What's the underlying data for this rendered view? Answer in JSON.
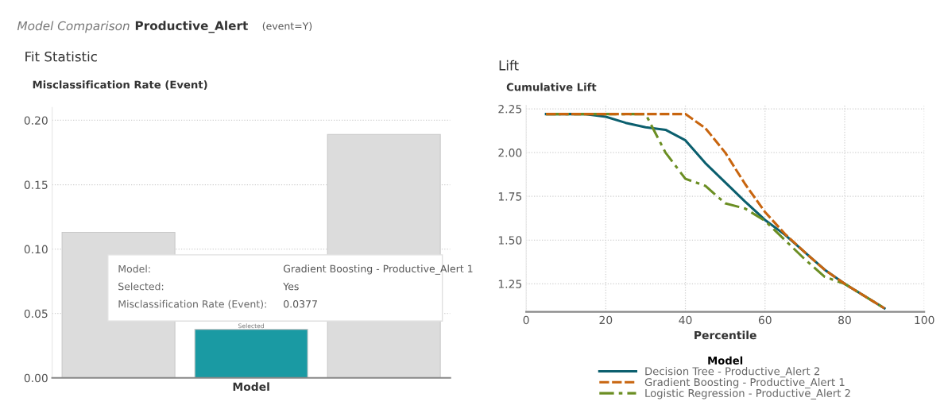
{
  "chart_data": [
    {
      "type": "bar",
      "title": "Fit Statistic",
      "xlabel": "Model",
      "ylabel": "Misclassification Rate (Event)",
      "categories": [
        null,
        null,
        null
      ],
      "values": [
        0.113,
        0.0377,
        0.189
      ],
      "colors": [
        "#dcdcdc",
        "#1a9aa3",
        "#dcdcdc"
      ],
      "ylim": [
        0,
        0.21
      ],
      "yticks": [
        {
          "value": 0,
          "label": "0.00"
        },
        {
          "value": 0.05,
          "label": "0.05"
        },
        {
          "value": 0.1,
          "label": "0.10"
        },
        {
          "value": 0.15,
          "label": "0.15"
        },
        {
          "value": 0.2,
          "label": "0.20"
        }
      ],
      "grid": "y",
      "tick_labels": "y",
      "annotations": [
        "Model Comparison",
        "Productive_Alert",
        "(event=Y)",
        "Model:",
        "Gradient Boosting - Productive_Alert 1",
        "Selected:",
        "Yes",
        "Misclassification Rate (Event):",
        "0.0377",
        "Selected"
      ]
    },
    {
      "type": "line",
      "title": "Lift",
      "xlabel": "Percentile",
      "ylabel": "Cumulative Lift",
      "legend_title": "Model",
      "legend": "bottom",
      "grid": true,
      "marker": "none",
      "x": [
        5,
        10,
        15,
        20,
        25,
        30,
        35,
        40,
        45,
        50,
        55,
        60,
        65,
        70,
        75,
        80,
        85,
        90
      ],
      "series": [
        {
          "name": "Decision Tree - Productive_Alert 2",
          "color": "#0b5f6e",
          "line_style": "solid",
          "values": [
            2.22,
            2.22,
            2.22,
            2.205,
            2.17,
            2.145,
            2.13,
            2.07,
            1.94,
            1.83,
            1.72,
            1.615,
            1.53,
            1.43,
            1.33,
            1.25,
            1.18,
            1.11
          ]
        },
        {
          "name": "Gradient Boosting - Productive_Alert 1",
          "color": "#c8650f",
          "line_style": "dashed",
          "values": [
            2.22,
            2.22,
            2.22,
            2.22,
            2.22,
            2.22,
            2.22,
            2.22,
            2.14,
            2.0,
            1.82,
            1.66,
            1.535,
            1.43,
            1.33,
            1.25,
            1.18,
            1.11
          ]
        },
        {
          "name": "Logistic Regression - Productive_Alert 2",
          "color": "#6b8e23",
          "line_style": "dashdot",
          "values": [
            2.22,
            2.22,
            2.22,
            2.22,
            2.22,
            2.22,
            2.0,
            1.85,
            1.81,
            1.71,
            1.68,
            1.61,
            1.5,
            1.39,
            1.29,
            1.25,
            1.18,
            1.11
          ]
        }
      ],
      "xlim": [
        0,
        100
      ],
      "xticks": [
        0,
        20,
        40,
        60,
        80,
        100
      ],
      "ylim": [
        1.09,
        2.27
      ],
      "yticks": [
        {
          "value": 1.25,
          "label": "1.25"
        },
        {
          "value": 1.5,
          "label": "1.50"
        },
        {
          "value": 1.75,
          "label": "1.75"
        },
        {
          "value": 2.0,
          "label": "2.00"
        },
        {
          "value": 2.25,
          "label": "2.25"
        }
      ]
    }
  ]
}
